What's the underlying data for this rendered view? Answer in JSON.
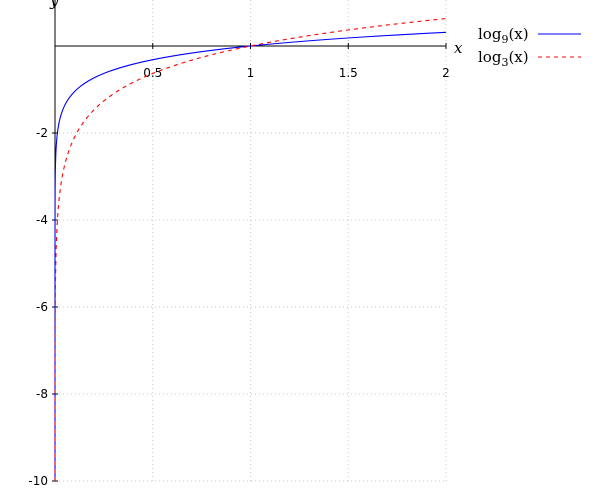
{
  "chart_data": {
    "type": "line",
    "xlabel": "x",
    "ylabel": "y",
    "xlim": [
      0,
      2
    ],
    "ylim": [
      -10,
      0
    ],
    "x_ticks": [
      {
        "value": 0.5,
        "label": "0.5"
      },
      {
        "value": 1,
        "label": "1"
      },
      {
        "value": 1.5,
        "label": "1.5"
      },
      {
        "value": 2,
        "label": "2"
      }
    ],
    "y_ticks": [
      {
        "value": -2,
        "label": "-2"
      },
      {
        "value": -4,
        "label": "-4"
      },
      {
        "value": -6,
        "label": "-6"
      },
      {
        "value": -8,
        "label": "-8"
      },
      {
        "value": -10,
        "label": "-10"
      }
    ],
    "grid": true,
    "legend_position": "top-right",
    "series": [
      {
        "name": "log9(x)",
        "label_prefix": "log",
        "label_base": "9",
        "label_suffix": "(x)",
        "function": "log base 9 of x",
        "base": 9,
        "color": "#0000ff",
        "style": "solid"
      },
      {
        "name": "log3(x)",
        "label_prefix": "log",
        "label_base": "3",
        "label_suffix": "(x)",
        "function": "log base 3 of x",
        "base": 3,
        "color": "#ff0000",
        "style": "dashed"
      }
    ]
  }
}
